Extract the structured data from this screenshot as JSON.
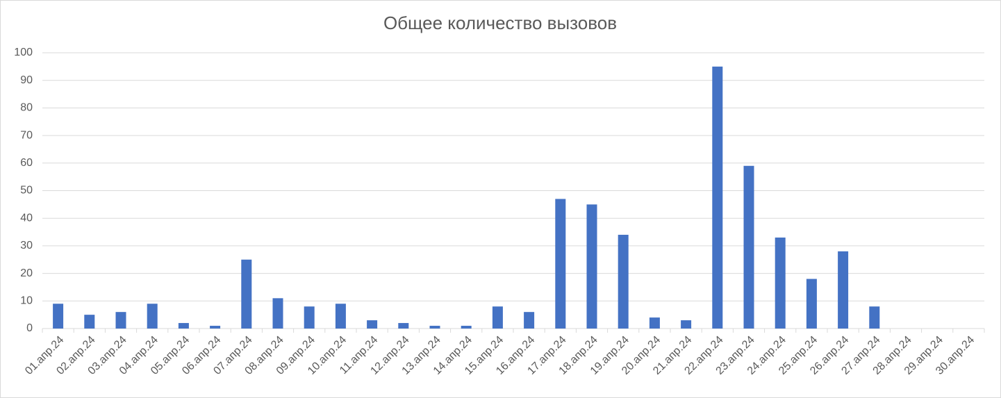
{
  "chart_data": {
    "type": "bar",
    "title": "Общее количество вызовов",
    "categories": [
      "01.апр.24",
      "02.апр.24",
      "03.апр.24",
      "04.апр.24",
      "05.апр.24",
      "06.апр.24",
      "07.апр.24",
      "08.апр.24",
      "09.апр.24",
      "10.апр.24",
      "11.апр.24",
      "12.апр.24",
      "13.апр.24",
      "14.апр.24",
      "15.апр.24",
      "16.апр.24",
      "17.апр.24",
      "18.апр.24",
      "19.апр.24",
      "20.апр.24",
      "21.апр.24",
      "22.апр.24",
      "23.апр.24",
      "24.апр.24",
      "25.апр.24",
      "26.апр.24",
      "27.апр.24",
      "28.апр.24",
      "29.апр.24",
      "30.апр.24"
    ],
    "values": [
      9,
      5,
      6,
      9,
      2,
      1,
      25,
      11,
      8,
      9,
      3,
      2,
      1,
      1,
      8,
      6,
      47,
      45,
      34,
      4,
      3,
      95,
      59,
      33,
      18,
      28,
      8,
      0,
      0,
      0
    ],
    "color": "#4472c4",
    "ylim": [
      0,
      100
    ],
    "yticks": [
      0,
      10,
      20,
      30,
      40,
      50,
      60,
      70,
      80,
      90,
      100
    ],
    "grid": true
  }
}
